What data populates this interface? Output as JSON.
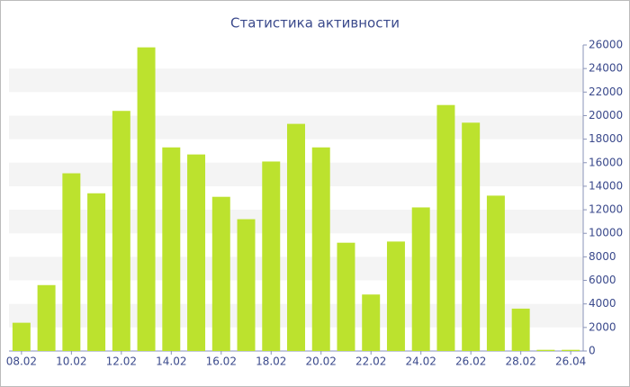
{
  "chart_data": {
    "type": "bar",
    "title": "Статистика активности",
    "categories": [
      "08.02",
      null,
      "10.02",
      null,
      "12.02",
      null,
      "14.02",
      null,
      "16.02",
      null,
      "18.02",
      null,
      "20.02",
      null,
      "22.02",
      null,
      "24.02",
      null,
      "26.02",
      null,
      "28.02",
      null,
      "26.04"
    ],
    "values": [
      2400,
      5600,
      15100,
      13400,
      20400,
      25800,
      17300,
      16700,
      13100,
      11200,
      16100,
      19300,
      17300,
      9200,
      4800,
      9300,
      12200,
      20900,
      19400,
      13200,
      3600,
      100,
      100
    ],
    "color": "#bce22e",
    "ylim": [
      0,
      26000
    ],
    "yticks": [
      0,
      2000,
      4000,
      6000,
      8000,
      10000,
      12000,
      14000,
      16000,
      18000,
      20000,
      22000,
      24000,
      26000
    ],
    "grid": true
  }
}
